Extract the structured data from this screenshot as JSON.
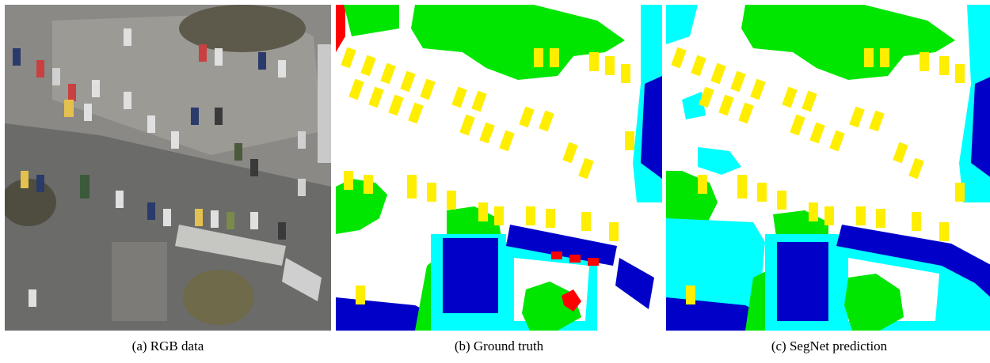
{
  "figure": {
    "panels": [
      {
        "caption": "(a) RGB data"
      },
      {
        "caption": "(b) Ground truth"
      },
      {
        "caption": "(c) SegNet prediction"
      }
    ]
  },
  "class_colors": {
    "impervious_surface": "#ffffff",
    "building": "#0000c8",
    "low_vegetation": "#00ffff",
    "tree": "#00e600",
    "car": "#ffee00",
    "clutter": "#ff0000"
  }
}
